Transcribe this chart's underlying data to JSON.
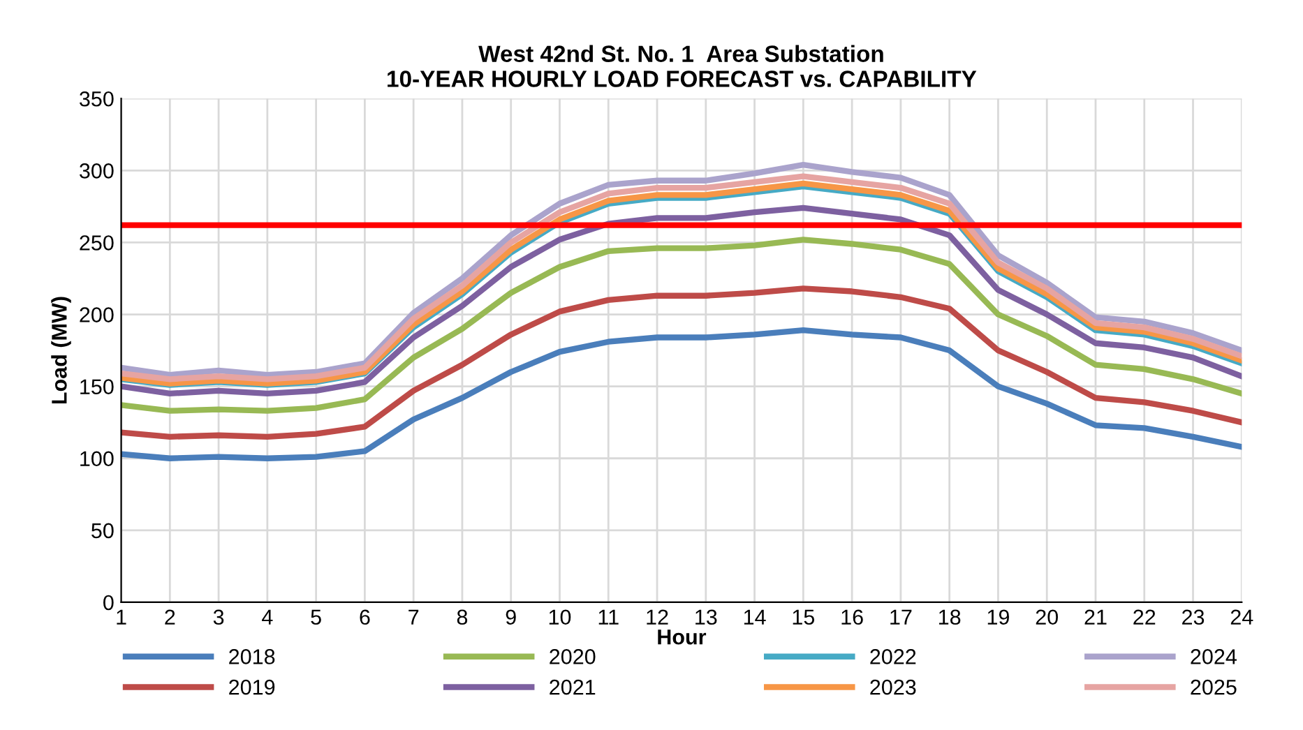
{
  "chart_data": {
    "type": "line",
    "title": "West 42nd St. No. 1  Area Substation\n10-YEAR HOURLY LOAD FORECAST vs. CAPABILITY",
    "xlabel": "Hour",
    "ylabel": "Load (MW)",
    "categories": [
      "1",
      "2",
      "3",
      "4",
      "5",
      "6",
      "7",
      "8",
      "9",
      "10",
      "11",
      "12",
      "13",
      "14",
      "15",
      "16",
      "17",
      "18",
      "19",
      "20",
      "21",
      "22",
      "23",
      "24"
    ],
    "series": [
      {
        "name": "2018",
        "color": "#4a7ebb",
        "values": [
          103,
          100,
          101,
          100,
          101,
          105,
          127,
          142,
          160,
          174,
          181,
          184,
          184,
          186,
          189,
          186,
          184,
          175,
          150,
          138,
          123,
          121,
          115,
          108
        ]
      },
      {
        "name": "2019",
        "color": "#be4b48",
        "values": [
          118,
          115,
          116,
          115,
          117,
          122,
          147,
          165,
          186,
          202,
          210,
          213,
          213,
          215,
          218,
          216,
          212,
          204,
          175,
          160,
          142,
          139,
          133,
          125
        ]
      },
      {
        "name": "2020",
        "color": "#98b954",
        "values": [
          137,
          133,
          134,
          133,
          135,
          141,
          170,
          190,
          215,
          233,
          244,
          246,
          246,
          248,
          252,
          249,
          245,
          235,
          200,
          185,
          165,
          162,
          155,
          145
        ]
      },
      {
        "name": "2021",
        "color": "#7d60a0",
        "values": [
          150,
          145,
          147,
          145,
          147,
          153,
          184,
          206,
          233,
          252,
          263,
          267,
          267,
          271,
          274,
          270,
          266,
          255,
          217,
          200,
          180,
          177,
          170,
          157
        ]
      },
      {
        "name": "2022",
        "color": "#46aac5",
        "values": [
          155,
          151,
          153,
          151,
          153,
          159,
          191,
          214,
          243,
          264,
          277,
          281,
          281,
          285,
          289,
          285,
          281,
          270,
          230,
          212,
          189,
          186,
          178,
          166
        ]
      },
      {
        "name": "2023",
        "color": "#f79646",
        "values": [
          156,
          152,
          154,
          152,
          154,
          160,
          193,
          216,
          245,
          266,
          279,
          283,
          283,
          287,
          291,
          287,
          283,
          272,
          232,
          214,
          191,
          188,
          180,
          168
        ]
      },
      {
        "name": "2024",
        "color": "#aaa3cc",
        "values": [
          163,
          158,
          161,
          158,
          160,
          166,
          201,
          225,
          255,
          277,
          290,
          293,
          293,
          298,
          304,
          299,
          295,
          283,
          241,
          222,
          198,
          195,
          187,
          175
        ]
      },
      {
        "name": "2025",
        "color": "#e6a4a2",
        "values": [
          159,
          155,
          157,
          155,
          157,
          163,
          197,
          220,
          250,
          271,
          284,
          288,
          288,
          292,
          296,
          292,
          288,
          277,
          236,
          218,
          194,
          191,
          183,
          171
        ]
      }
    ],
    "ylim": [
      0,
      350
    ],
    "yticks": [
      0,
      50,
      100,
      150,
      200,
      250,
      300,
      350
    ],
    "grid": true,
    "legend": "bottom",
    "marker": "none",
    "line_style": "solid",
    "ref_lines": [
      {
        "axis": "y",
        "value": 262,
        "color": "#ff0000",
        "line_style": "solid"
      }
    ]
  }
}
